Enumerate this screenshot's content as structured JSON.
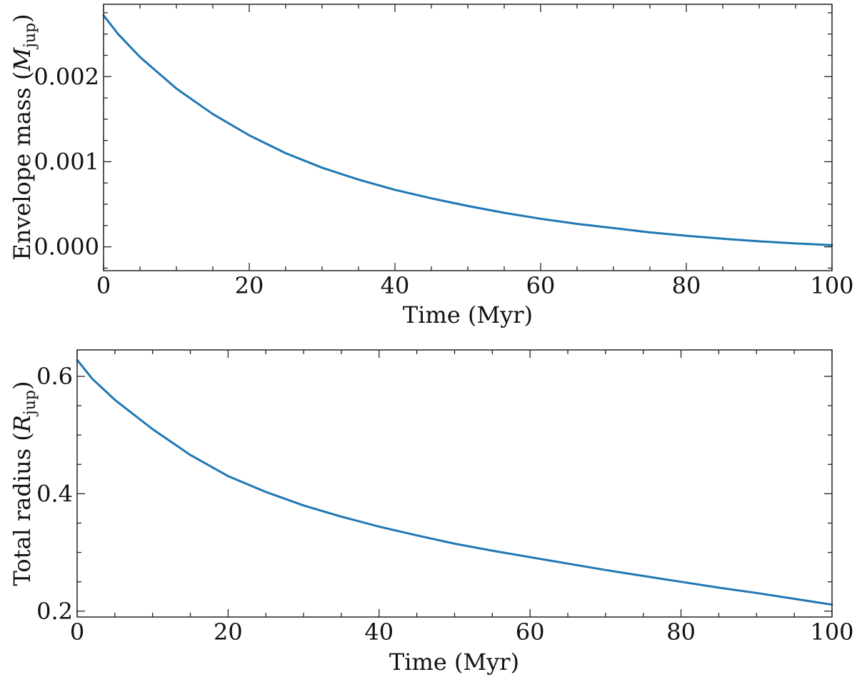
{
  "colors": {
    "line": "#1f77b4",
    "axis": "#222222"
  },
  "chart_data": [
    {
      "type": "line",
      "xlabel": "Time (Myr)",
      "ylabel_main": "Envelope mass (",
      "ylabel_symbol": "M",
      "ylabel_sub": "jup",
      "ylabel_close": ")",
      "xlim": [
        0,
        100
      ],
      "ylim": [
        -0.00028,
        0.00285
      ],
      "x_ticks": [
        0,
        20,
        40,
        60,
        80,
        100
      ],
      "x_tick_labels": [
        "0",
        "20",
        "40",
        "60",
        "80",
        "100"
      ],
      "x_minor_step": 5,
      "y_ticks": [
        0.0,
        0.001,
        0.002
      ],
      "y_tick_labels": [
        "0.000",
        "0.001",
        "0.002"
      ],
      "y_minor_step": 0.00025,
      "grid": false,
      "series": [
        {
          "name": "envelope-mass",
          "x": [
            0,
            2,
            5,
            10,
            15,
            20,
            25,
            30,
            35,
            40,
            45,
            50,
            55,
            60,
            65,
            70,
            75,
            80,
            85,
            90,
            95,
            100
          ],
          "y": [
            0.00272,
            0.0025,
            0.00223,
            0.00186,
            0.00156,
            0.00131,
            0.0011,
            0.00093,
            0.00079,
            0.00067,
            0.00057,
            0.00048,
            0.0004,
            0.00033,
            0.00027,
            0.00022,
            0.00017,
            0.00013,
            9.5e-05,
            6.5e-05,
            4e-05,
            2e-05
          ]
        }
      ]
    },
    {
      "type": "line",
      "xlabel": "Time (Myr)",
      "ylabel_main": "Total radius (",
      "ylabel_symbol": "R",
      "ylabel_sub": "jup",
      "ylabel_close": ")",
      "xlim": [
        0,
        100
      ],
      "ylim": [
        0.19,
        0.645
      ],
      "x_ticks": [
        0,
        20,
        40,
        60,
        80,
        100
      ],
      "x_tick_labels": [
        "0",
        "20",
        "40",
        "60",
        "80",
        "100"
      ],
      "x_minor_step": 5,
      "y_ticks": [
        0.2,
        0.4,
        0.6
      ],
      "y_tick_labels": [
        "0.2",
        "0.4",
        "0.6"
      ],
      "y_minor_step": 0.05,
      "grid": false,
      "series": [
        {
          "name": "total-radius",
          "x": [
            0,
            2,
            5,
            10,
            15,
            20,
            25,
            30,
            35,
            40,
            45,
            50,
            55,
            60,
            65,
            70,
            75,
            80,
            85,
            90,
            95,
            100
          ],
          "y": [
            0.628,
            0.596,
            0.56,
            0.51,
            0.466,
            0.43,
            0.403,
            0.38,
            0.361,
            0.344,
            0.329,
            0.315,
            0.303,
            0.292,
            0.281,
            0.27,
            0.26,
            0.25,
            0.24,
            0.231,
            0.221,
            0.211
          ]
        }
      ]
    }
  ]
}
